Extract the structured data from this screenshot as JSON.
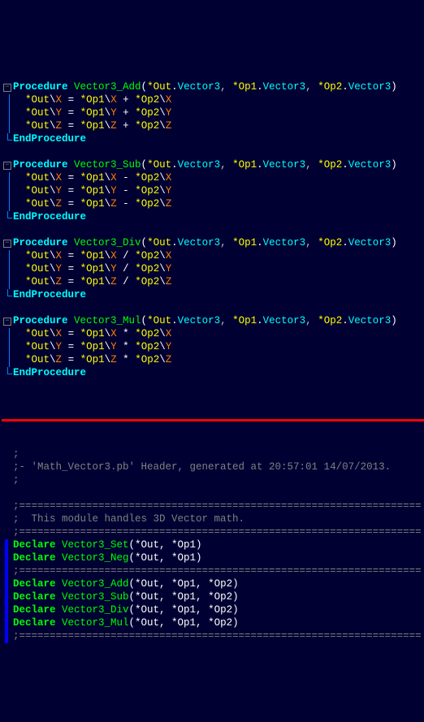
{
  "procedures": [
    {
      "name": "Vector3_Add",
      "sig_out": "*Out",
      "sig_out_type": "Vector3",
      "sig_op1": "*Op1",
      "sig_op1_type": "Vector3",
      "sig_op2": "*Op2",
      "sig_op2_type": "Vector3",
      "op_symbol": "+",
      "lines": [
        {
          "lhs": "*Out",
          "lm": "X",
          "a": "*Op1",
          "am": "X",
          "b": "*Op2",
          "bm": "X"
        },
        {
          "lhs": "*Out",
          "lm": "Y",
          "a": "*Op1",
          "am": "Y",
          "b": "*Op2",
          "bm": "Y"
        },
        {
          "lhs": "*Out",
          "lm": "Z",
          "a": "*Op1",
          "am": "Z",
          "b": "*Op2",
          "bm": "Z"
        }
      ]
    },
    {
      "name": "Vector3_Sub",
      "sig_out": "*Out",
      "sig_out_type": "Vector3",
      "sig_op1": "*Op1",
      "sig_op1_type": "Vector3",
      "sig_op2": "*Op2",
      "sig_op2_type": "Vector3",
      "op_symbol": "-",
      "lines": [
        {
          "lhs": "*Out",
          "lm": "X",
          "a": "*Op1",
          "am": "X",
          "b": "*Op2",
          "bm": "X"
        },
        {
          "lhs": "*Out",
          "lm": "Y",
          "a": "*Op1",
          "am": "Y",
          "b": "*Op2",
          "bm": "Y"
        },
        {
          "lhs": "*Out",
          "lm": "Z",
          "a": "*Op1",
          "am": "Z",
          "b": "*Op2",
          "bm": "Z"
        }
      ]
    },
    {
      "name": "Vector3_Div",
      "sig_out": "*Out",
      "sig_out_type": "Vector3",
      "sig_op1": "*Op1",
      "sig_op1_type": "Vector3",
      "sig_op2": "*Op2",
      "sig_op2_type": "Vector3",
      "op_symbol": "/",
      "lines": [
        {
          "lhs": "*Out",
          "lm": "X",
          "a": "*Op1",
          "am": "X",
          "b": "*Op2",
          "bm": "X"
        },
        {
          "lhs": "*Out",
          "lm": "Y",
          "a": "*Op1",
          "am": "Y",
          "b": "*Op2",
          "bm": "Y"
        },
        {
          "lhs": "*Out",
          "lm": "Z",
          "a": "*Op1",
          "am": "Z",
          "b": "*Op2",
          "bm": "Z"
        }
      ]
    },
    {
      "name": "Vector3_Mul",
      "sig_out": "*Out",
      "sig_out_type": "Vector3",
      "sig_op1": "*Op1",
      "sig_op1_type": "Vector3",
      "sig_op2": "*Op2",
      "sig_op2_type": "Vector3",
      "op_symbol": "*",
      "lines": [
        {
          "lhs": "*Out",
          "lm": "X",
          "a": "*Op1",
          "am": "X",
          "b": "*Op2",
          "bm": "X"
        },
        {
          "lhs": "*Out",
          "lm": "Y",
          "a": "*Op1",
          "am": "Y",
          "b": "*Op2",
          "bm": "Y"
        },
        {
          "lhs": "*Out",
          "lm": "Z",
          "a": "*Op1",
          "am": "Z",
          "b": "*Op2",
          "bm": "Z"
        }
      ]
    }
  ],
  "keywords": {
    "procedure": "Procedure",
    "endprocedure": "EndProcedure",
    "declare": "Declare"
  },
  "header": {
    "c1": ";",
    "c2": ";- 'Math_Vector3.pb' Header, generated at 20:57:01 14/07/2013.",
    "c3": ";",
    "sep": ";==================================================================",
    "desc": ";  This module handles 3D Vector math.",
    "declares1": [
      {
        "name": "Vector3_Set",
        "args": "(*Out, *Op1)"
      },
      {
        "name": "Vector3_Neg",
        "args": "(*Out, *Op1)"
      }
    ],
    "declares2": [
      {
        "name": "Vector3_Add",
        "args": "(*Out, *Op1, *Op2)"
      },
      {
        "name": "Vector3_Sub",
        "args": "(*Out, *Op1, *Op2)"
      },
      {
        "name": "Vector3_Div",
        "args": "(*Out, *Op1, *Op2)"
      },
      {
        "name": "Vector3_Mul",
        "args": "(*Out, *Op1, *Op2)"
      }
    ]
  },
  "colors": {
    "background": "#000033",
    "keyword": "#00ffff",
    "function": "#00ff00",
    "pointer": "#ffff00",
    "member": "#ff8000",
    "operator": "#ffffff",
    "comment": "#808080",
    "declare": "#00ff00",
    "divider": "#ff0000",
    "fold": "#0080ff",
    "marker": "#0000ff"
  }
}
